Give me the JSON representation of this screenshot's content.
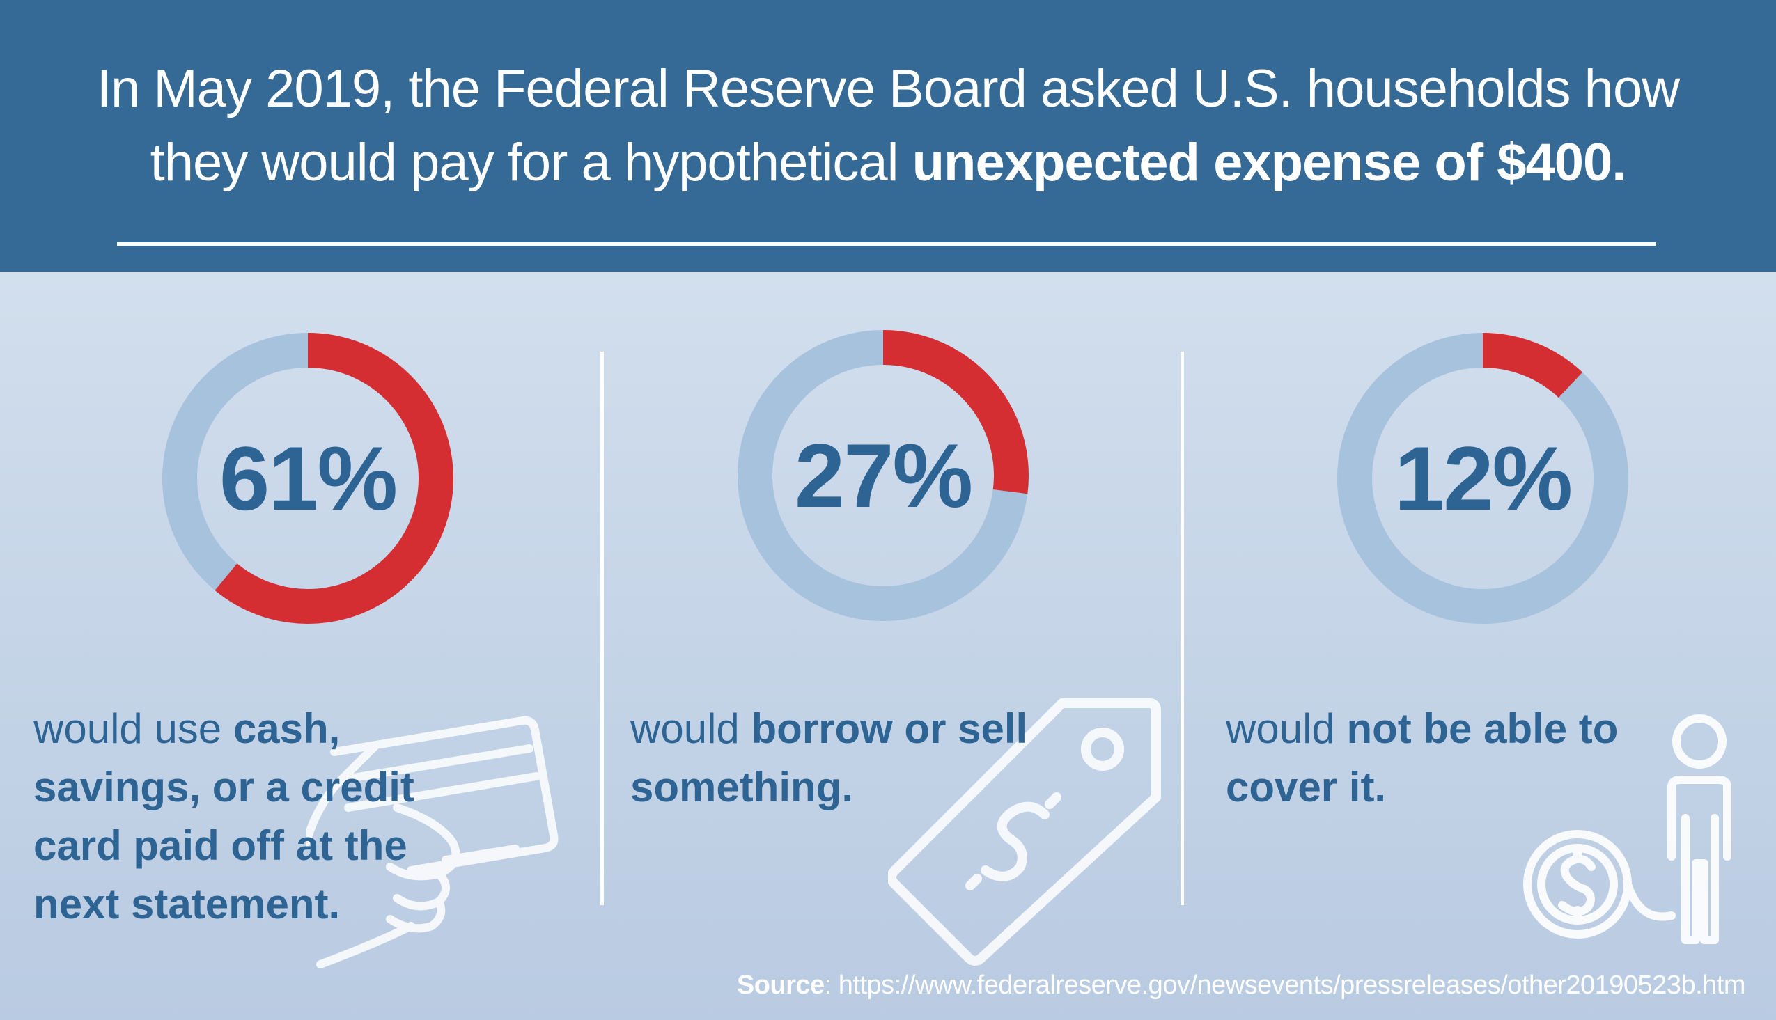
{
  "headline": {
    "line1": "In May 2019, the Federal Reserve Board asked U.S. households how",
    "line2_plain": "they would pay for a hypothetical ",
    "line2_bold": "unexpected expense of $400."
  },
  "chart_data": {
    "type": "pie",
    "variant": "donut",
    "categories": [
      "would use cash, savings, or a credit card paid off at the next statement.",
      "would borrow or sell something.",
      "would not be able to cover it."
    ],
    "values": [
      61,
      27,
      12
    ],
    "value_labels": [
      "61%",
      "27%",
      "12%"
    ],
    "colors": {
      "filled": "#d42e33",
      "track": "#a6c2dc"
    }
  },
  "captions": [
    {
      "plain": "would use ",
      "bold": "cash, savings, or a credit card paid off at the next statement."
    },
    {
      "plain": "would ",
      "bold": "borrow or sell something."
    },
    {
      "plain": "would ",
      "bold": "not be able to cover it."
    }
  ],
  "icons": [
    "credit-card-hand-icon",
    "price-tag-dollar-icon",
    "person-dollar-coin-icon"
  ],
  "source": {
    "label": "Source",
    "url": ": https://www.federalreserve.gov/newsevents/pressreleases/other20190523b.htm"
  },
  "colors": {
    "header_bg": "#356a97",
    "text_blue": "#2e6494",
    "accent_red": "#d42e33"
  }
}
